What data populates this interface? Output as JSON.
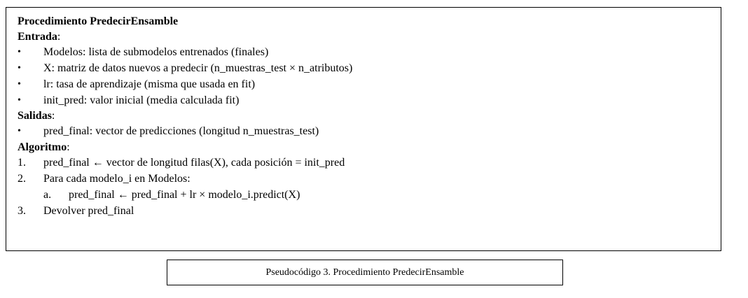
{
  "procedure": {
    "title": "Procedimiento PredecirEnsamble",
    "entrada_label": "Entrada",
    "entrada_colon": ":",
    "entrada_items": [
      "Modelos: lista de submodelos entrenados (finales)",
      "X: matriz de datos nuevos a predecir (n_muestras_test × n_atributos)",
      "lr: tasa de aprendizaje (misma que usada en fit)",
      "init_pred: valor inicial (media calculada fit)"
    ],
    "salidas_label": "Salidas",
    "salidas_colon": ":",
    "salidas_items": [
      "pred_final: vector de predicciones (longitud n_muestras_test)"
    ],
    "algoritmo_label": "Algoritmo",
    "algoritmo_colon": ":",
    "steps": [
      {
        "num": "1.",
        "pre": "pred_final",
        "arrow": "←",
        "post": "vector de longitud filas(X), cada posición = init_pred"
      },
      {
        "num": "2.",
        "text": "Para cada modelo_i en Modelos:"
      },
      {
        "num": "a.",
        "pre": "pred_final",
        "arrow": "←",
        "post": "pred_final + lr × modelo_i.predict(X)"
      },
      {
        "num": "3.",
        "text": "Devolver pred_final"
      }
    ],
    "bullet_glyph": "•"
  },
  "caption": "Pseudocódigo 3. Procedimiento PredecirEnsamble"
}
